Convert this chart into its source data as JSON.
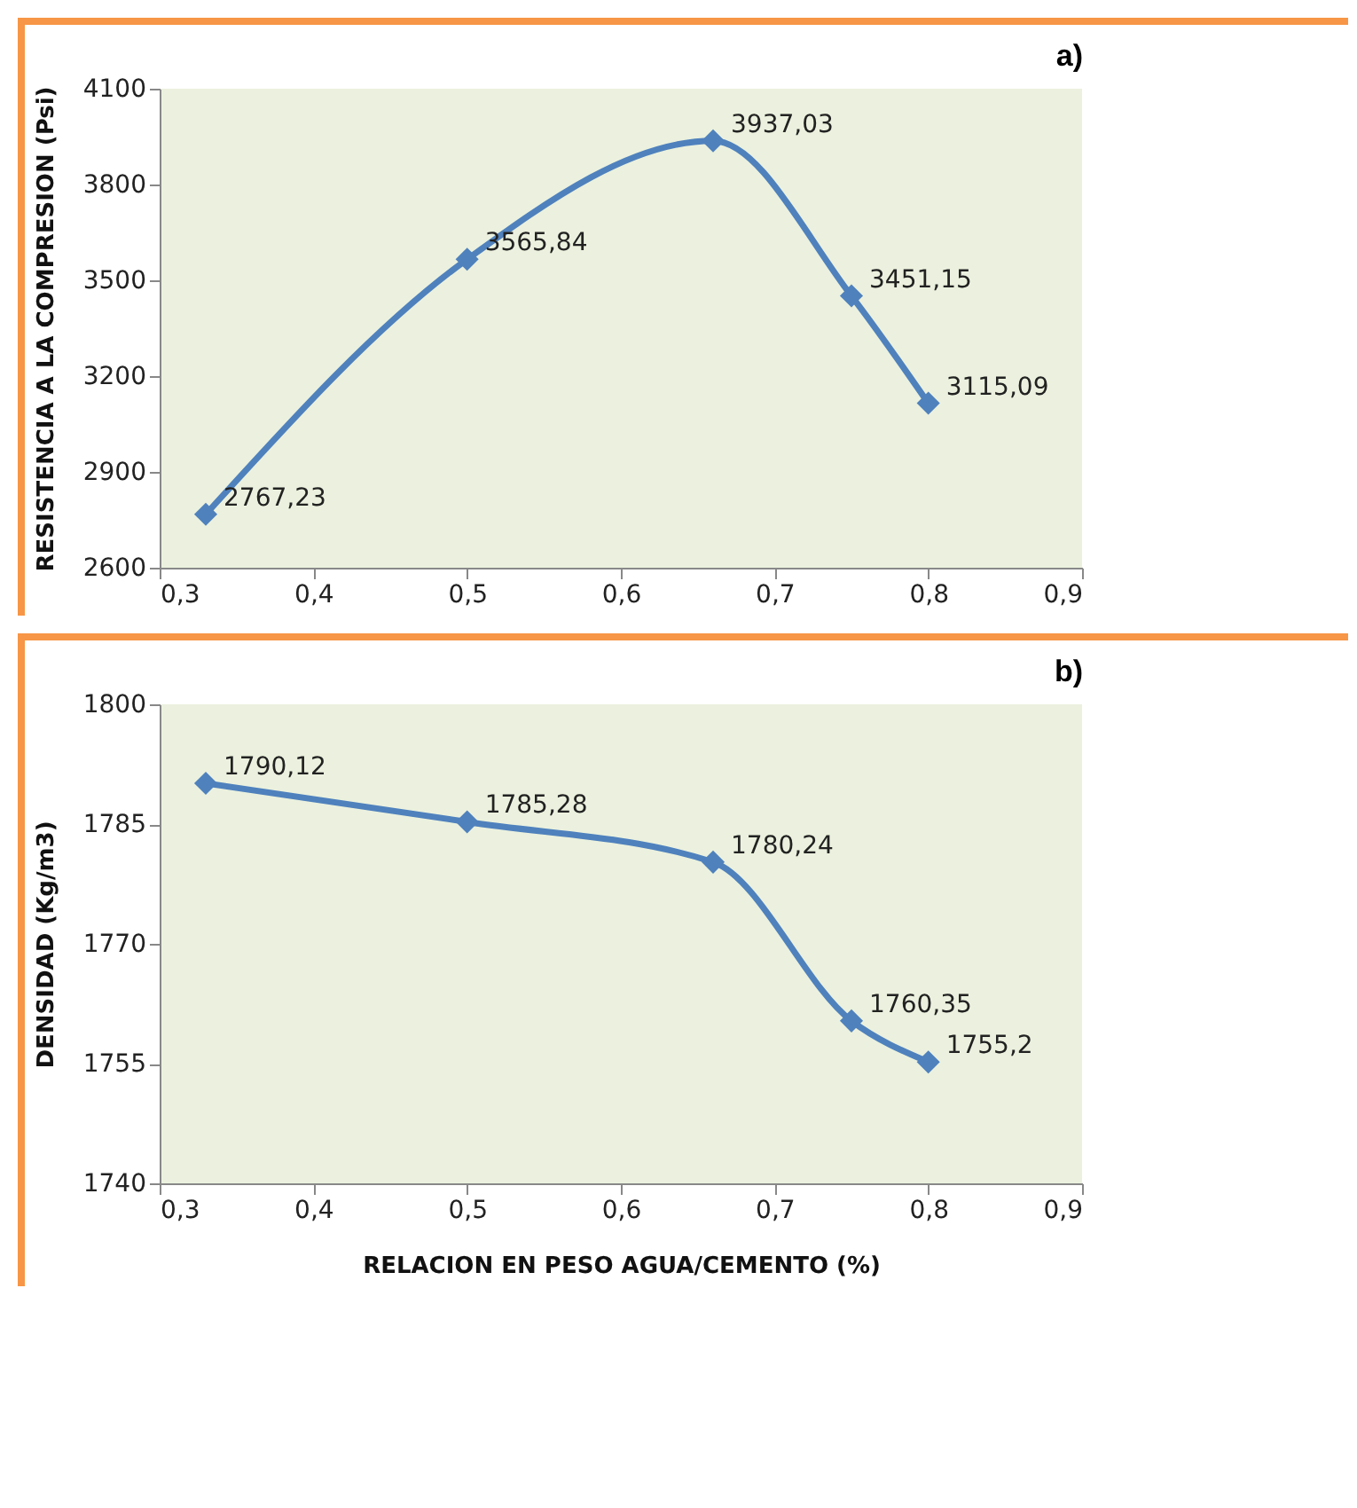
{
  "chart_data": [
    {
      "type": "line",
      "title": "a)",
      "ylabel": "RESISTENCIA A LA COMPRESION (Psi)",
      "x": [
        0.33,
        0.5,
        0.66,
        0.75,
        0.8
      ],
      "values": [
        2767.23,
        3565.84,
        3937.03,
        3451.15,
        3115.09
      ],
      "value_labels": [
        "2767,23",
        "3565,84",
        "3937,03",
        "3451,15",
        "3115,09"
      ],
      "color": "#4f81bd",
      "marker": "diamond",
      "line_style": "solid",
      "xlim": [
        0.3,
        0.9
      ],
      "xticks": [
        {
          "value": 0.3,
          "label": "0,3"
        },
        {
          "value": 0.4,
          "label": "0,4"
        },
        {
          "value": 0.5,
          "label": "0,5"
        },
        {
          "value": 0.6,
          "label": "0,6"
        },
        {
          "value": 0.7,
          "label": "0,7"
        },
        {
          "value": 0.8,
          "label": "0,8"
        },
        {
          "value": 0.9,
          "label": "0,9"
        }
      ],
      "ylim": [
        2600,
        4100
      ],
      "yticks": [
        2600,
        2900,
        3200,
        3500,
        3800,
        4100
      ]
    },
    {
      "type": "line",
      "title": "b)",
      "xlabel": "RELACION EN PESO AGUA/CEMENTO (%)",
      "ylabel": "DENSIDAD (Kg/m3)",
      "x": [
        0.33,
        0.5,
        0.66,
        0.75,
        0.8
      ],
      "values": [
        1790.12,
        1785.28,
        1780.24,
        1760.35,
        1755.2
      ],
      "value_labels": [
        "1790,12",
        "1785,28",
        "1780,24",
        "1760,35",
        "1755,2"
      ],
      "color": "#4f81bd",
      "marker": "diamond",
      "line_style": "solid",
      "xlim": [
        0.3,
        0.9
      ],
      "xticks": [
        {
          "value": 0.3,
          "label": "0,3"
        },
        {
          "value": 0.4,
          "label": "0,4"
        },
        {
          "value": 0.5,
          "label": "0,5"
        },
        {
          "value": 0.6,
          "label": "0,6"
        },
        {
          "value": 0.7,
          "label": "0,7"
        },
        {
          "value": 0.8,
          "label": "0,8"
        },
        {
          "value": 0.9,
          "label": "0,9"
        }
      ],
      "ylim": [
        1740,
        1800
      ],
      "yticks": [
        1740,
        1755,
        1770,
        1785,
        1800
      ]
    }
  ]
}
